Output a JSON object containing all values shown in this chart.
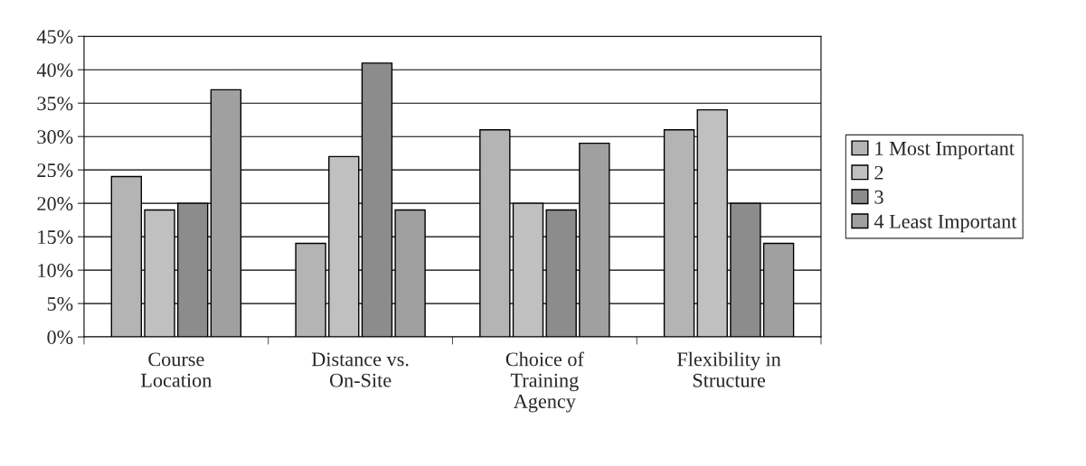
{
  "chart_data": {
    "type": "bar",
    "categories": [
      "Course\nLocation",
      "Distance vs.\nOn-Site",
      "Choice of\nTraining\nAgency",
      "Flexibility in\nStructure"
    ],
    "series": [
      {
        "name": "1 Most Important",
        "color": "#b4b4b4",
        "values": [
          24,
          14,
          31,
          31
        ]
      },
      {
        "name": "2",
        "color": "#c0c0c0",
        "values": [
          19,
          27,
          20,
          34
        ]
      },
      {
        "name": "3",
        "color": "#8c8c8c",
        "values": [
          20,
          41,
          19,
          20
        ]
      },
      {
        "name": "4 Least Important",
        "color": "#a0a0a0",
        "values": [
          37,
          19,
          29,
          14
        ]
      }
    ],
    "ylim": [
      0,
      45
    ],
    "yticks": [
      {
        "value": 0,
        "label": "0%"
      },
      {
        "value": 5,
        "label": "5%"
      },
      {
        "value": 10,
        "label": "10%"
      },
      {
        "value": 15,
        "label": "15%"
      },
      {
        "value": 20,
        "label": "20%"
      },
      {
        "value": 25,
        "label": "25%"
      },
      {
        "value": 30,
        "label": "30%"
      },
      {
        "value": 35,
        "label": "35%"
      },
      {
        "value": 40,
        "label": "40%"
      },
      {
        "value": 45,
        "label": "45%"
      }
    ],
    "grid": "y",
    "legend": "right"
  }
}
